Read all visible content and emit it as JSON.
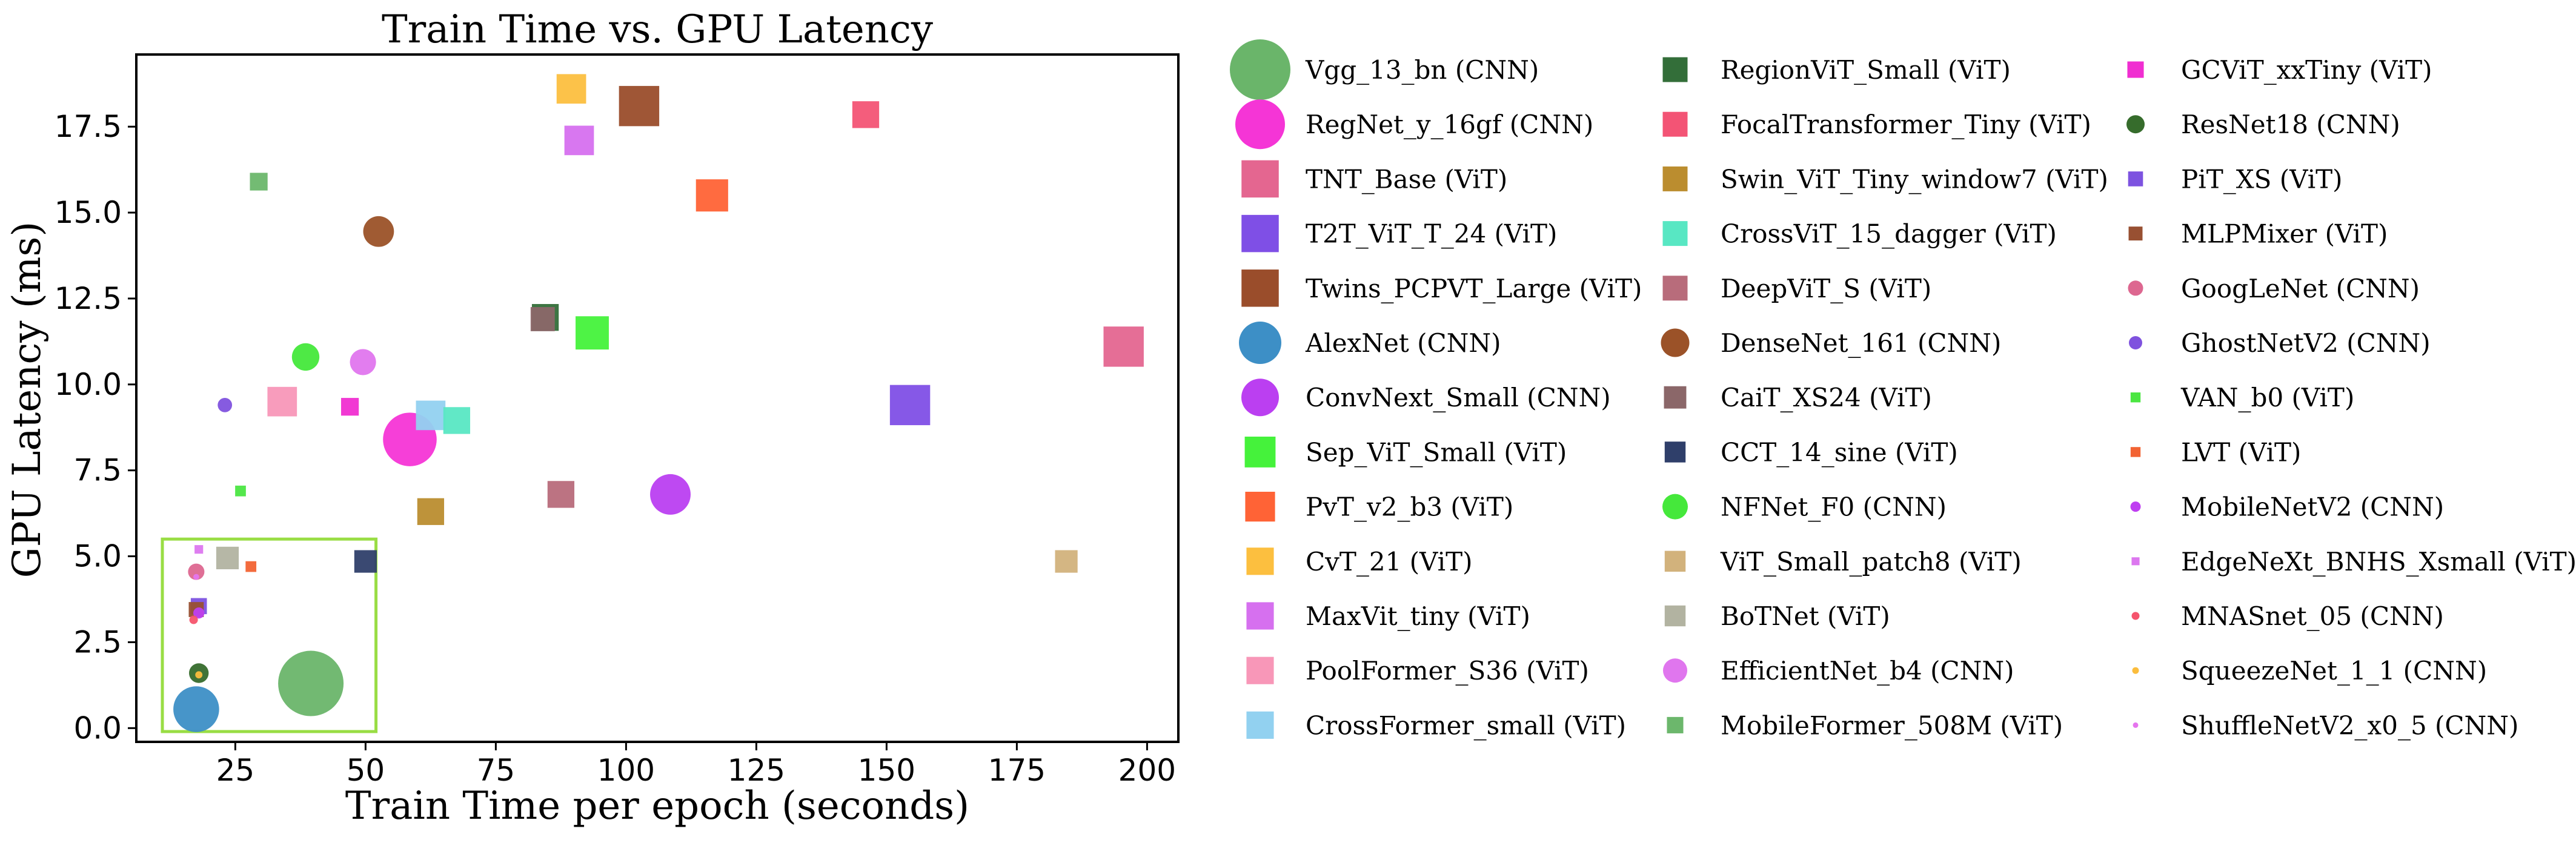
{
  "chart_data": {
    "type": "scatter",
    "title": "Train Time vs. GPU Latency",
    "xlabel": "Train Time per epoch (seconds)",
    "ylabel": "GPU Latency (ms)",
    "xlim": [
      6,
      206
    ],
    "ylim": [
      -0.4,
      19.6
    ],
    "xticks": [
      "25",
      "50",
      "75",
      "100",
      "125",
      "150",
      "175",
      "200"
    ],
    "yticks": [
      "0.0",
      "2.5",
      "5.0",
      "7.5",
      "10.0",
      "12.5",
      "15.0",
      "17.5"
    ],
    "highlight_box": {
      "x_range": [
        11,
        52
      ],
      "y_range": [
        -0.1,
        5.5
      ],
      "color": "#99dd44"
    },
    "legend_position": "right, outside plot, 3 columns",
    "series": [
      {
        "name": "Vgg_13_bn (CNN)",
        "marker": "circle",
        "color": "#6ab56a",
        "x": 39.5,
        "y": 1.3,
        "size": 1.0
      },
      {
        "name": "RegNet_y_16gf (CNN)",
        "marker": "circle",
        "color": "#f535d6",
        "x": 58.5,
        "y": 8.4,
        "size": 0.82
      },
      {
        "name": "TNT_Base (ViT)",
        "marker": "square",
        "color": "#e46690",
        "x": 195.5,
        "y": 11.1,
        "size": 0.75
      },
      {
        "name": "T2T_ViT_T_24 (ViT)",
        "marker": "square",
        "color": "#7f4fe6",
        "x": 154.5,
        "y": 9.4,
        "size": 0.75
      },
      {
        "name": "Twins_PCPVT_Large (ViT)",
        "marker": "square",
        "color": "#9a4d2b",
        "x": 102.5,
        "y": 18.1,
        "size": 0.75
      },
      {
        "name": "AlexNet (CNN)",
        "marker": "circle",
        "color": "#3d8fc6",
        "x": 17.5,
        "y": 0.55,
        "size": 0.7
      },
      {
        "name": "ConvNext_Small (CNN)",
        "marker": "circle",
        "color": "#bb3ff1",
        "x": 108.5,
        "y": 6.8,
        "size": 0.62
      },
      {
        "name": "Sep_ViT_Small (ViT)",
        "marker": "square",
        "color": "#45f23b",
        "x": 93.5,
        "y": 11.5,
        "size": 0.62
      },
      {
        "name": "PvT_v2_b3 (ViT)",
        "marker": "square",
        "color": "#ff6336",
        "x": 116.5,
        "y": 15.5,
        "size": 0.6
      },
      {
        "name": "CvT_21 (ViT)",
        "marker": "square",
        "color": "#fcbf3f",
        "x": 89.5,
        "y": 18.6,
        "size": 0.55
      },
      {
        "name": "MaxVit_tiny (ViT)",
        "marker": "square",
        "color": "#d670ef",
        "x": 91,
        "y": 17.1,
        "size": 0.55
      },
      {
        "name": "PoolFormer_S36 (ViT)",
        "marker": "square",
        "color": "#f897b8",
        "x": 34,
        "y": 9.5,
        "size": 0.55
      },
      {
        "name": "CrossFormer_small (ViT)",
        "marker": "square",
        "color": "#92d1f0",
        "x": 62.5,
        "y": 9.1,
        "size": 0.55
      },
      {
        "name": "RegionViT_Small (ViT)",
        "marker": "square",
        "color": "#336e39",
        "x": 84.5,
        "y": 11.95,
        "size": 0.5
      },
      {
        "name": "FocalTransformer_Tiny (ViT)",
        "marker": "square",
        "color": "#f35475",
        "x": 146,
        "y": 17.85,
        "size": 0.5
      },
      {
        "name": "Swin_ViT_Tiny_window7 (ViT)",
        "marker": "square",
        "color": "#bb8d2f",
        "x": 62.5,
        "y": 6.3,
        "size": 0.5
      },
      {
        "name": "CrossViT_15_dagger (ViT)",
        "marker": "square",
        "color": "#58e7c3",
        "x": 67.5,
        "y": 8.95,
        "size": 0.5
      },
      {
        "name": "DeepViT_S (ViT)",
        "marker": "square",
        "color": "#b86c7b",
        "x": 87.5,
        "y": 6.8,
        "size": 0.5
      },
      {
        "name": "DenseNet_161 (CNN)",
        "marker": "circle",
        "color": "#9b5228",
        "x": 52.5,
        "y": 14.45,
        "size": 0.47
      },
      {
        "name": "CaiT_XS24 (ViT)",
        "marker": "square",
        "color": "#8b6769",
        "x": 84,
        "y": 11.9,
        "size": 0.45
      },
      {
        "name": "CCT_14_sine (ViT)",
        "marker": "square",
        "color": "#2f3f6a",
        "x": 50,
        "y": 4.85,
        "size": 0.42
      },
      {
        "name": "NFNet_F0 (CNN)",
        "marker": "circle",
        "color": "#45e83b",
        "x": 38.5,
        "y": 10.8,
        "size": 0.42
      },
      {
        "name": "ViT_Small_patch8 (ViT)",
        "marker": "square",
        "color": "#d2b27c",
        "x": 184.5,
        "y": 4.85,
        "size": 0.42
      },
      {
        "name": "BoTNet (ViT)",
        "marker": "square",
        "color": "#b2b3a1",
        "x": 23.5,
        "y": 4.95,
        "size": 0.42
      },
      {
        "name": "EfficientNet_b4 (CNN)",
        "marker": "circle",
        "color": "#e076ee",
        "x": 49.5,
        "y": 10.65,
        "size": 0.4
      },
      {
        "name": "MobileFormer_508M (ViT)",
        "marker": "square",
        "color": "#6cb76c",
        "x": 29.5,
        "y": 15.9,
        "size": 0.33
      },
      {
        "name": "GCViT_xxTiny (ViT)",
        "marker": "square",
        "color": "#f02ed1",
        "x": 47,
        "y": 9.35,
        "size": 0.33
      },
      {
        "name": "ResNet18 (CNN)",
        "marker": "circle",
        "color": "#366c2c",
        "x": 18,
        "y": 1.6,
        "size": 0.3
      },
      {
        "name": "PiT_XS (ViT)",
        "marker": "square",
        "color": "#7d53e0",
        "x": 18,
        "y": 3.55,
        "size": 0.3
      },
      {
        "name": "MLPMixer (ViT)",
        "marker": "square",
        "color": "#985032",
        "x": 17.5,
        "y": 3.45,
        "size": 0.28
      },
      {
        "name": "GoogLeNet (CNN)",
        "marker": "circle",
        "color": "#dd6790",
        "x": 17.5,
        "y": 4.55,
        "size": 0.25
      },
      {
        "name": "GhostNetV2 (CNN)",
        "marker": "circle",
        "color": "#7f52de",
        "x": 23,
        "y": 9.4,
        "size": 0.22
      },
      {
        "name": "VAN_b0 (ViT)",
        "marker": "square",
        "color": "#4be642",
        "x": 26,
        "y": 6.9,
        "size": 0.2
      },
      {
        "name": "LVT (ViT)",
        "marker": "square",
        "color": "#f26333",
        "x": 28,
        "y": 4.7,
        "size": 0.2
      },
      {
        "name": "MobileNetV2 (CNN)",
        "marker": "circle",
        "color": "#bf3ff1",
        "x": 18,
        "y": 3.35,
        "size": 0.17
      },
      {
        "name": "EdgeNeXt_BNHS_Xsmall (ViT)",
        "marker": "square",
        "color": "#dc77ef",
        "x": 18,
        "y": 5.2,
        "size": 0.16
      },
      {
        "name": "MNASnet_05 (CNN)",
        "marker": "circle",
        "color": "#f5546d",
        "x": 17,
        "y": 3.15,
        "size": 0.13
      },
      {
        "name": "SqueezeNet_1_1 (CNN)",
        "marker": "circle",
        "color": "#fbbd3d",
        "x": 18,
        "y": 1.55,
        "size": 0.11
      },
      {
        "name": "ShuffleNetV2_x0_5 (CNN)",
        "marker": "circle",
        "color": "#e575ee",
        "x": 17.5,
        "y": 4.4,
        "size": 0.09
      }
    ]
  }
}
